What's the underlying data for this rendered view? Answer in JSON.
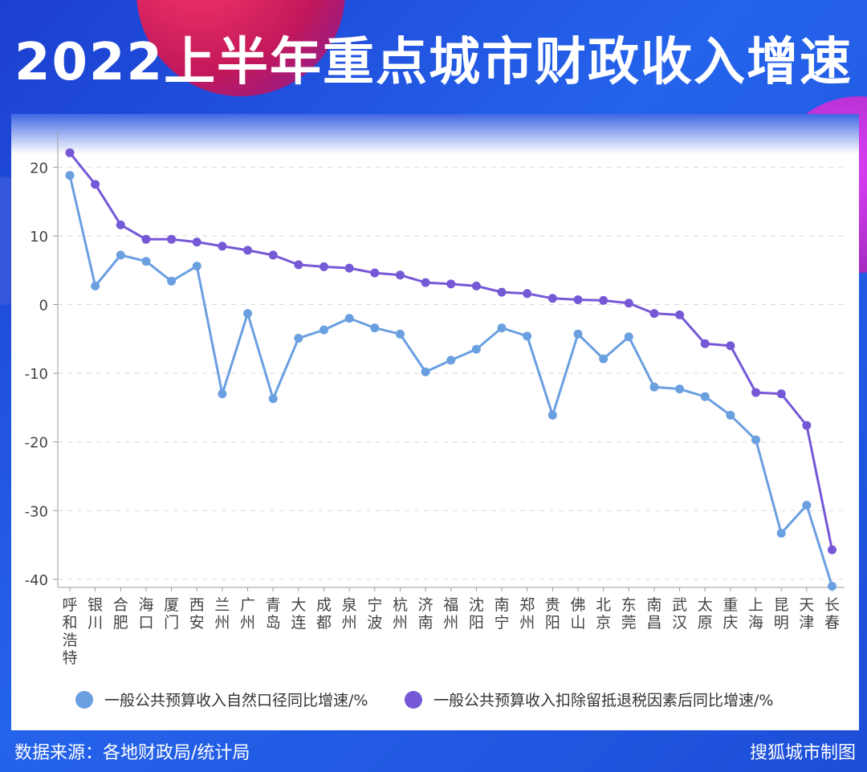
{
  "title": "2022上半年重点城市财政收入增速",
  "footer": {
    "source": "数据来源：各地财政局/统计局",
    "credit": "搜狐城市制图"
  },
  "chart_data": {
    "type": "line",
    "title": "2022上半年重点城市财政收入增速",
    "ylim": [
      -40,
      22
    ],
    "yticks": [
      20,
      10,
      0,
      -10,
      -20,
      -30,
      -40
    ],
    "grid": true,
    "legend_position": "bottom",
    "categories": [
      "呼和浩特",
      "银川",
      "合肥",
      "海口",
      "厦门",
      "西安",
      "兰州",
      "广州",
      "青岛",
      "大连",
      "成都",
      "泉州",
      "宁波",
      "杭州",
      "济南",
      "福州",
      "沈阳",
      "南宁",
      "郑州",
      "贵阳",
      "佛山",
      "北京",
      "东莞",
      "南昌",
      "武汉",
      "太原",
      "重庆",
      "上海",
      "昆明",
      "天津",
      "长春"
    ],
    "series": [
      {
        "name": "一般公共预算收入自然口径同比增速/%",
        "color": "#6a9fe0",
        "values": [
          18.8,
          2.7,
          7.2,
          6.3,
          3.4,
          5.6,
          -13.0,
          -1.3,
          -13.7,
          -4.9,
          -3.7,
          -2.0,
          -3.4,
          -4.3,
          -9.8,
          -8.1,
          -6.5,
          -3.4,
          -4.6,
          -16.1,
          -4.3,
          -7.9,
          -4.7,
          -12.0,
          -12.3,
          -13.4,
          -16.1,
          -19.7,
          -33.3,
          -29.2,
          -41.0
        ]
      },
      {
        "name": "一般公共预算收入扣除留抵退税因素后同比增速/%",
        "color": "#7558d6",
        "values": [
          22.1,
          17.5,
          11.6,
          9.5,
          9.5,
          9.1,
          8.5,
          7.9,
          7.2,
          5.8,
          5.5,
          5.3,
          4.6,
          4.3,
          3.2,
          3.0,
          2.7,
          1.8,
          1.6,
          0.9,
          0.7,
          0.6,
          0.2,
          -1.3,
          -1.5,
          -5.7,
          -6.0,
          -12.8,
          -13.0,
          -17.6,
          -35.7
        ]
      }
    ]
  }
}
